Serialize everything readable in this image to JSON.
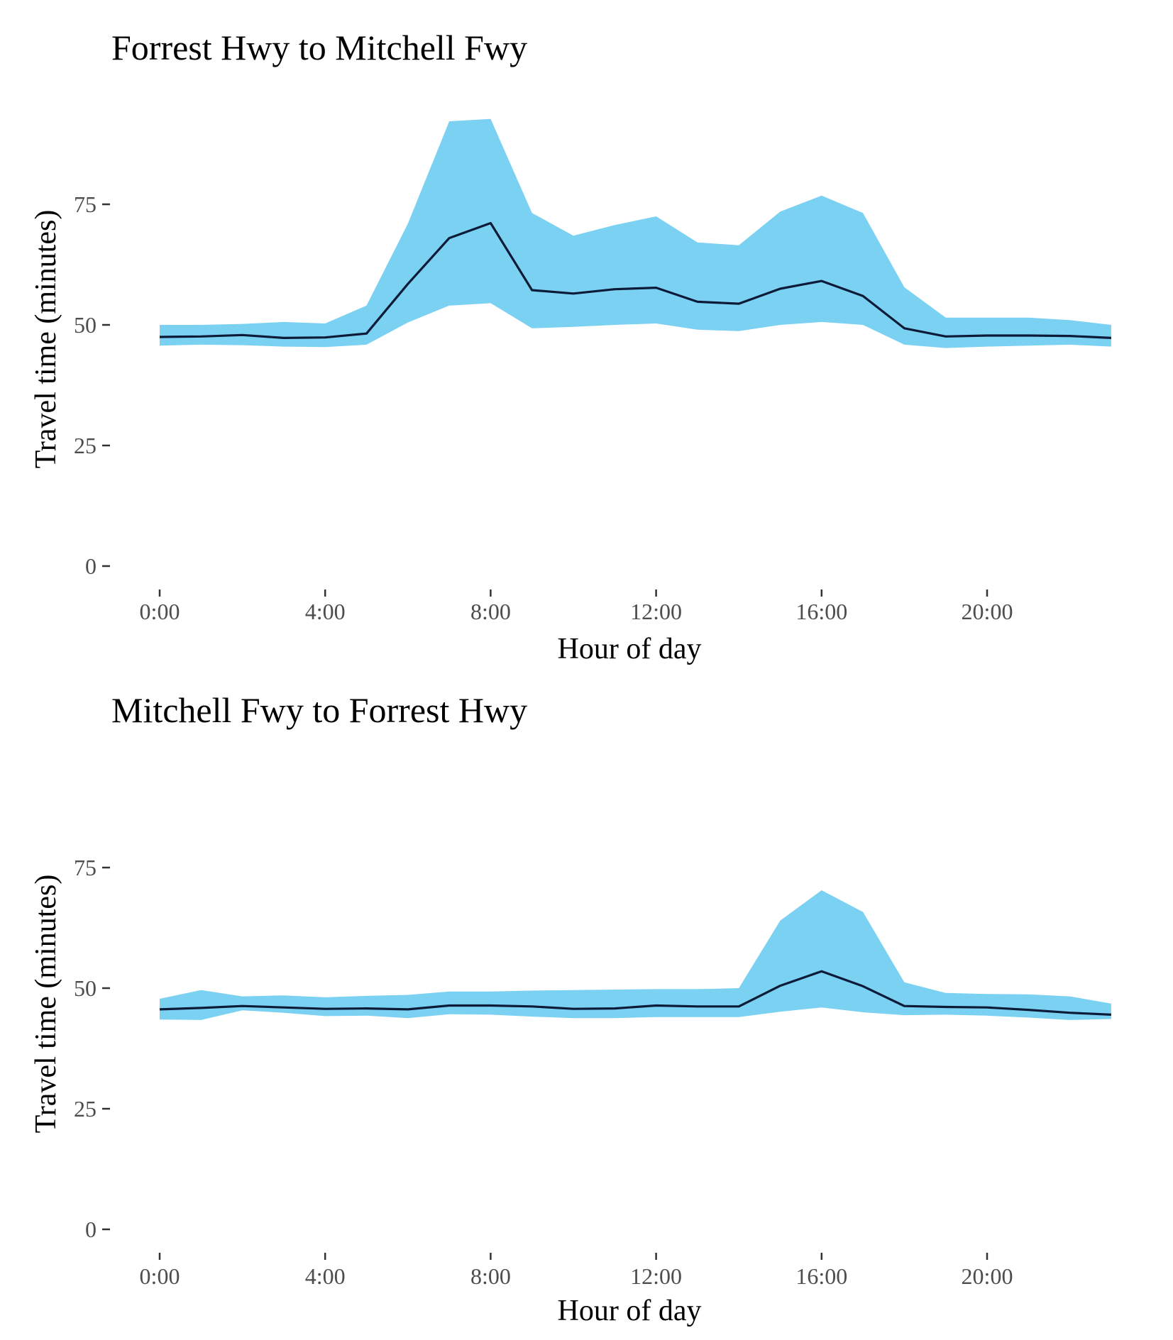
{
  "colors": {
    "band": "#7ad1f2",
    "line": "#0d1b38",
    "tick": "#333333",
    "background": "#ffffff"
  },
  "chart_data": [
    {
      "type": "area",
      "title": "Forrest Hwy to Mitchell Fwy",
      "xlabel": "Hour of day",
      "ylabel": "Travel time (minutes)",
      "xlim": [
        0,
        23
      ],
      "ylim": [
        0,
        92
      ],
      "grid": false,
      "x_ticks": [
        0,
        4,
        8,
        12,
        16,
        20
      ],
      "x_tick_labels": [
        "0:00",
        "4:00",
        "8:00",
        "12:00",
        "16:00",
        "20:00"
      ],
      "y_ticks": [
        0,
        25,
        50,
        75
      ],
      "y_tick_labels": [
        "0",
        "25",
        "50",
        "75"
      ],
      "x": [
        0,
        1,
        2,
        3,
        4,
        5,
        6,
        7,
        8,
        9,
        10,
        11,
        12,
        13,
        14,
        15,
        16,
        17,
        18,
        19,
        20,
        21,
        22,
        23
      ],
      "series": [
        {
          "type": "band",
          "lower": [
            45.7,
            45.9,
            45.8,
            45.5,
            45.4,
            45.9,
            50.5,
            54.0,
            54.5,
            49.3,
            49.6,
            50.0,
            50.3,
            49.0,
            48.7,
            50.0,
            50.6,
            50.0,
            45.9,
            45.2,
            45.5,
            45.7,
            45.9,
            45.5
          ],
          "upper": [
            50.0,
            50.0,
            50.2,
            50.6,
            50.3,
            54.0,
            71.0,
            92.2,
            92.7,
            73.2,
            68.5,
            70.7,
            72.5,
            67.1,
            66.5,
            73.5,
            76.8,
            73.2,
            57.8,
            51.5,
            51.5,
            51.5,
            51.0,
            50.0
          ]
        },
        {
          "type": "line",
          "values": [
            47.5,
            47.6,
            47.9,
            47.3,
            47.4,
            48.2,
            58.5,
            68.0,
            71.1,
            57.2,
            56.5,
            57.4,
            57.7,
            54.8,
            54.4,
            57.5,
            59.1,
            56.0,
            49.3,
            47.6,
            47.8,
            47.8,
            47.7,
            47.3
          ]
        }
      ]
    },
    {
      "type": "area",
      "title": "Mitchell Fwy to Forrest Hwy",
      "xlabel": "Hour of day",
      "ylabel": "Travel time (minutes)",
      "xlim": [
        0,
        23
      ],
      "ylim": [
        0,
        80
      ],
      "grid": false,
      "x_ticks": [
        0,
        4,
        8,
        12,
        16,
        20
      ],
      "x_tick_labels": [
        "0:00",
        "4:00",
        "8:00",
        "12:00",
        "16:00",
        "20:00"
      ],
      "y_ticks": [
        0,
        25,
        50,
        75
      ],
      "y_tick_labels": [
        "0",
        "25",
        "50",
        "75"
      ],
      "x": [
        0,
        1,
        2,
        3,
        4,
        5,
        6,
        7,
        8,
        9,
        10,
        11,
        12,
        13,
        14,
        15,
        16,
        17,
        18,
        19,
        20,
        21,
        22,
        23
      ],
      "series": [
        {
          "type": "band",
          "lower": [
            43.5,
            43.4,
            45.4,
            44.9,
            44.2,
            44.3,
            43.8,
            44.6,
            44.5,
            44.1,
            43.8,
            43.8,
            44.0,
            44.0,
            44.0,
            45.1,
            46.0,
            45.0,
            44.4,
            44.5,
            44.3,
            43.9,
            43.4,
            43.6
          ],
          "upper": [
            47.8,
            49.6,
            48.3,
            48.5,
            48.1,
            48.4,
            48.6,
            49.3,
            49.3,
            49.5,
            49.6,
            49.7,
            49.8,
            49.8,
            50.0,
            64.0,
            70.3,
            65.8,
            51.2,
            49.0,
            48.8,
            48.7,
            48.3,
            46.8
          ]
        },
        {
          "type": "line",
          "values": [
            45.6,
            45.9,
            46.3,
            46.0,
            45.7,
            45.8,
            45.6,
            46.4,
            46.4,
            46.2,
            45.7,
            45.8,
            46.4,
            46.2,
            46.2,
            50.5,
            53.5,
            50.4,
            46.3,
            46.1,
            46.0,
            45.5,
            44.9,
            44.5
          ]
        }
      ]
    }
  ]
}
